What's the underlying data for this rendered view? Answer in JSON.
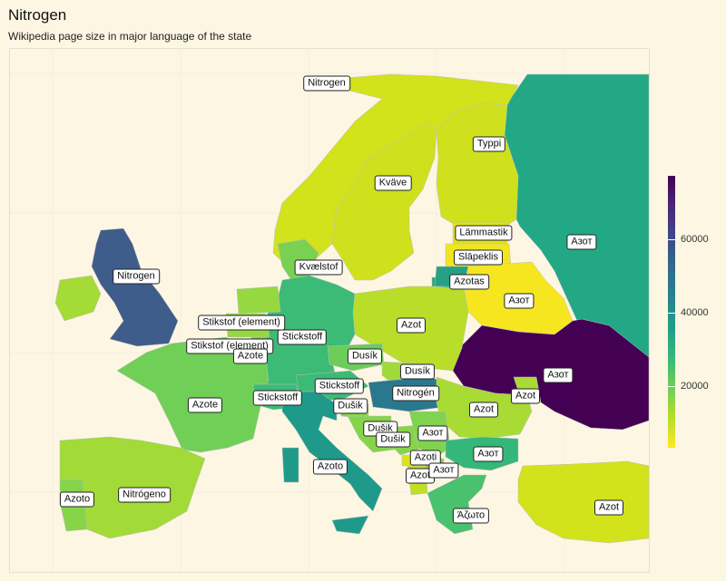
{
  "title": "Nitrogen",
  "subtitle": "Wikipedia page size in major language of the state",
  "legend": {
    "ticks": [
      "20000",
      "40000",
      "60000"
    ],
    "tick_values": [
      20000,
      40000,
      60000
    ],
    "min": 0,
    "max": 77000,
    "colors": [
      "#fde725",
      "#b5de2b",
      "#6ece58",
      "#35b779",
      "#1f9e89",
      "#26828e",
      "#31688e",
      "#3e4989",
      "#482878",
      "#440154"
    ]
  },
  "countries": [
    {
      "name": "Norway",
      "label": "Nitrogen",
      "value": 8000,
      "color": "#d2e21b"
    },
    {
      "name": "Sweden",
      "label": "Kväve",
      "value": 9000,
      "color": "#cfe11c"
    },
    {
      "name": "Finland",
      "label": "Typpi",
      "value": 8500,
      "color": "#cfe11c"
    },
    {
      "name": "Russia",
      "label": "Азот",
      "value": 33000,
      "color": "#22a884"
    },
    {
      "name": "Estonia",
      "label": "Lämmastik",
      "value": 6000,
      "color": "#dde318"
    },
    {
      "name": "Latvia",
      "label": "Slāpeklis",
      "value": 3000,
      "color": "#f1e51d"
    },
    {
      "name": "Lithuania",
      "label": "Azotas",
      "value": 35000,
      "color": "#26a083"
    },
    {
      "name": "Belarus",
      "label": "Азот",
      "value": 2500,
      "color": "#f6e620"
    },
    {
      "name": "Ukraine",
      "label": "Азот",
      "value": 76000,
      "color": "#440154"
    },
    {
      "name": "Poland",
      "label": "Azot",
      "value": 11000,
      "color": "#b8de29"
    },
    {
      "name": "Denmark",
      "label": "Kvælstof",
      "value": 19000,
      "color": "#7ad151"
    },
    {
      "name": "Germany",
      "label": "Stickstoff",
      "value": 26000,
      "color": "#3bbb75"
    },
    {
      "name": "United Kingdom",
      "label": "Nitrogen",
      "value": 52000,
      "color": "#3f5d8a"
    },
    {
      "name": "Ireland",
      "label": "Nitrogen",
      "value": 13000,
      "color": "#a5db36"
    },
    {
      "name": "Netherlands",
      "label": "Stikstof (element)",
      "value": 15000,
      "color": "#95d840"
    },
    {
      "name": "Belgium",
      "label": "Stikstof (element)",
      "value": 15000,
      "color": "#95d840"
    },
    {
      "name": "Luxembourg",
      "label": "Azote",
      "value": 20000,
      "color": "#70cf57"
    },
    {
      "name": "France",
      "label": "Azote",
      "value": 20000,
      "color": "#70cf57"
    },
    {
      "name": "Switzerland",
      "label": "Stickstoff",
      "value": 26000,
      "color": "#3bbb75"
    },
    {
      "name": "Austria",
      "label": "Stickstoff",
      "value": 26000,
      "color": "#3bbb75"
    },
    {
      "name": "Czechia",
      "label": "Dusík",
      "value": 20000,
      "color": "#6ccd5a"
    },
    {
      "name": "Slovakia",
      "label": "Dusík",
      "value": 14000,
      "color": "#a0da39"
    },
    {
      "name": "Hungary",
      "label": "Nitrogén",
      "value": 38000,
      "color": "#2a788e"
    },
    {
      "name": "Romania",
      "label": "Azot",
      "value": 13000,
      "color": "#a8db34"
    },
    {
      "name": "Moldova",
      "label": "Azot",
      "value": 13000,
      "color": "#a8db34"
    },
    {
      "name": "Slovenia",
      "label": "Dušik",
      "value": 17000,
      "color": "#86d549"
    },
    {
      "name": "Croatia",
      "label": "Dušik",
      "value": 17000,
      "color": "#86d549"
    },
    {
      "name": "Bosnia and Herzegovina",
      "label": "Dušik",
      "value": 17000,
      "color": "#86d549"
    },
    {
      "name": "Serbia",
      "label": "Азот",
      "value": 18000,
      "color": "#7fd34e"
    },
    {
      "name": "Montenegro",
      "label": "Azot",
      "value": 6000,
      "color": "#dde318"
    },
    {
      "name": "Albania",
      "label": "Azoti",
      "value": 10000,
      "color": "#c0df25"
    },
    {
      "name": "North Macedonia",
      "label": "Азот",
      "value": 16000,
      "color": "#8ed645"
    },
    {
      "name": "Bulgaria",
      "label": "Азот",
      "value": 27000,
      "color": "#35b779"
    },
    {
      "name": "Greece",
      "label": "Άζωτο",
      "value": 24000,
      "color": "#4ac16d"
    },
    {
      "name": "Italy",
      "label": "Azoto",
      "value": 34000,
      "color": "#1f9a8a"
    },
    {
      "name": "Spain",
      "label": "Nitrógeno",
      "value": 14000,
      "color": "#a2da37"
    },
    {
      "name": "Portugal",
      "label": "Azoto",
      "value": 17000,
      "color": "#86d549"
    },
    {
      "name": "Turkey",
      "label": "Azot",
      "value": 8000,
      "color": "#d2e21b"
    }
  ]
}
